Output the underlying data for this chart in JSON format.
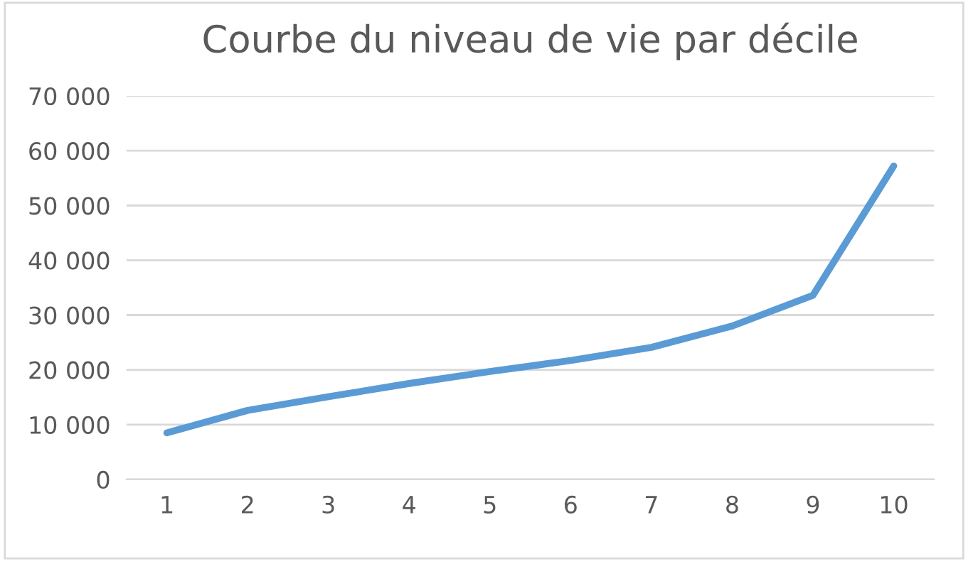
{
  "chart_data": {
    "type": "line",
    "title": "Courbe du niveau de vie par décile",
    "categories": [
      "1",
      "2",
      "3",
      "4",
      "5",
      "6",
      "7",
      "8",
      "9",
      "10"
    ],
    "series": [
      {
        "color": "#5b9bd5",
        "values": [
          8500,
          12600,
          15100,
          17500,
          19700,
          21700,
          24100,
          28000,
          33600,
          57200
        ]
      }
    ],
    "ylim": [
      0,
      70000
    ],
    "yticks": [
      0,
      {
        "value": 10000,
        "label": "10 000"
      },
      {
        "value": 20000,
        "label": "20 000"
      },
      {
        "value": 30000,
        "label": "30 000"
      },
      {
        "value": 40000,
        "label": "40 000"
      },
      {
        "value": 50000,
        "label": "50 000"
      },
      {
        "value": 60000,
        "label": "60 000"
      },
      {
        "value": 70000,
        "label": "70 000"
      }
    ],
    "grid": "y",
    "marker": "none",
    "line_style": "solid"
  }
}
